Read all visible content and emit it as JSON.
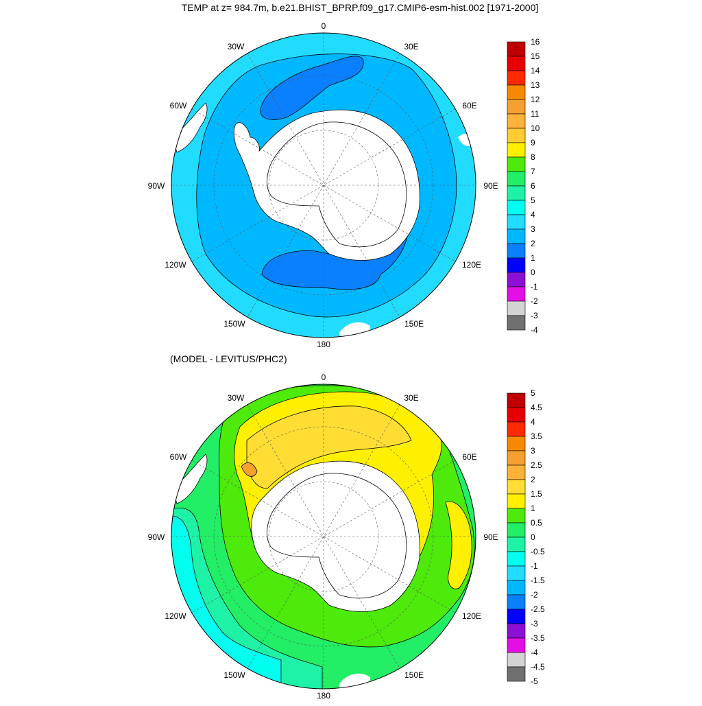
{
  "titles": {
    "top": "TEMP at z= 984.7m, b.e21.BHIST_BPRP.f09_g17.CMIP6-esm-hist.002 [1971-2000]",
    "bottom": "(MODEL - LEVITUS/PHC2)"
  },
  "longitude_labels": [
    "0",
    "30E",
    "60E",
    "90E",
    "120E",
    "150E",
    "180",
    "150W",
    "120W",
    "90W",
    "60W",
    "30W"
  ],
  "top_map": {
    "colorbar_labels": [
      "16",
      "15",
      "14",
      "13",
      "12",
      "11",
      "10",
      "9",
      "8",
      "7",
      "6",
      "5",
      "4",
      "3",
      "2",
      "1",
      "0",
      "-1",
      "-2",
      "-3",
      "-4"
    ],
    "colorbar_colors": [
      "#c00000",
      "#e80000",
      "#ff2a00",
      "#f58a00",
      "#f5a030",
      "#ffb23a",
      "#ffcc33",
      "#fff000",
      "#4dea0c",
      "#22ee66",
      "#1ef2a6",
      "#00ffee",
      "#22dcff",
      "#00b8ff",
      "#0a80ff",
      "#0000ff",
      "#8c0fd6",
      "#e60ee6",
      "#d3d3d3",
      "#707070"
    ]
  },
  "bottom_map": {
    "colorbar_labels": [
      "5",
      "4.5",
      "4",
      "3.5",
      "3",
      "2.5",
      "2",
      "1.5",
      "1",
      "0.5",
      "0",
      "-0.5",
      "-1",
      "-1.5",
      "-2",
      "-2.5",
      "-3",
      "-3.5",
      "-4",
      "-4.5",
      "-5"
    ],
    "colorbar_colors": [
      "#c00000",
      "#e80000",
      "#ff2a00",
      "#f58a00",
      "#f5a030",
      "#ffb23a",
      "#ffdd33",
      "#fff000",
      "#4dea0c",
      "#22ee66",
      "#1ef2a6",
      "#00ffee",
      "#22dcff",
      "#00b8ff",
      "#0a80ff",
      "#0000ff",
      "#8c0fd6",
      "#e60ee6",
      "#d3d3d3",
      "#707070"
    ]
  }
}
